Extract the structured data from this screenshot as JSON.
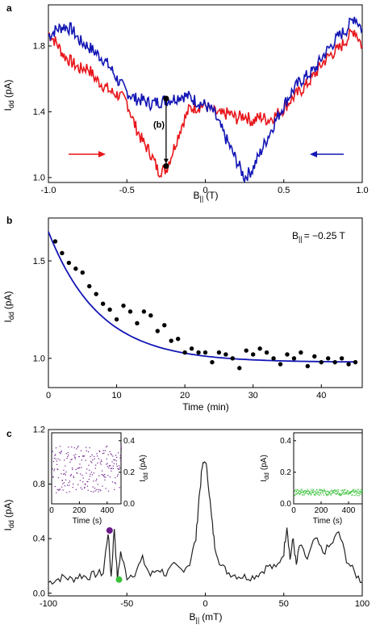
{
  "chart_data": [
    {
      "panel": "a",
      "type": "line",
      "xlabel_main": "B",
      "xlabel_sub": "||",
      "xlabel_unit": "(T)",
      "ylabel_main": "I",
      "ylabel_sub": "dd",
      "ylabel_unit": "(pA)",
      "xlim": [
        -1.0,
        1.0
      ],
      "ylim": [
        0.97,
        2.05
      ],
      "xticks": [
        -1.0,
        -0.5,
        0,
        0.5,
        1.0
      ],
      "xtick_labels": [
        "-1.0",
        "-0.5",
        "0",
        "0.5",
        "1.0"
      ],
      "yticks": [
        1.0,
        1.4,
        1.8
      ],
      "ytick_labels": [
        "1.0",
        "1.4",
        "1.8"
      ],
      "series": [
        {
          "color": "#e8161b",
          "sweep": "up",
          "x": [
            -1.0,
            -0.95,
            -0.9,
            -0.85,
            -0.8,
            -0.75,
            -0.7,
            -0.65,
            -0.6,
            -0.55,
            -0.5,
            -0.45,
            -0.4,
            -0.35,
            -0.3,
            -0.25,
            -0.2,
            -0.15,
            -0.1,
            -0.05,
            0.0,
            0.05,
            0.1,
            0.15,
            0.2,
            0.25,
            0.3,
            0.35,
            0.4,
            0.45,
            0.5,
            0.55,
            0.6,
            0.65,
            0.7,
            0.75,
            0.8,
            0.85,
            0.9,
            0.95,
            1.0
          ],
          "y": [
            1.88,
            1.82,
            1.74,
            1.7,
            1.66,
            1.67,
            1.6,
            1.56,
            1.52,
            1.5,
            1.46,
            1.32,
            1.22,
            1.15,
            1.04,
            1.05,
            1.18,
            1.32,
            1.42,
            1.43,
            1.44,
            1.4,
            1.38,
            1.39,
            1.36,
            1.38,
            1.34,
            1.37,
            1.35,
            1.38,
            1.42,
            1.48,
            1.52,
            1.57,
            1.63,
            1.7,
            1.75,
            1.78,
            1.84,
            1.9,
            1.8
          ]
        },
        {
          "color": "#1316b4",
          "sweep": "down",
          "x": [
            -1.0,
            -0.95,
            -0.9,
            -0.85,
            -0.8,
            -0.75,
            -0.7,
            -0.65,
            -0.6,
            -0.55,
            -0.5,
            -0.45,
            -0.4,
            -0.35,
            -0.3,
            -0.25,
            -0.2,
            -0.15,
            -0.1,
            -0.05,
            0.0,
            0.05,
            0.1,
            0.15,
            0.2,
            0.25,
            0.3,
            0.35,
            0.4,
            0.45,
            0.5,
            0.55,
            0.6,
            0.65,
            0.7,
            0.75,
            0.8,
            0.85,
            0.9,
            0.95,
            1.0
          ],
          "y": [
            1.86,
            1.9,
            1.92,
            1.9,
            1.83,
            1.8,
            1.76,
            1.72,
            1.66,
            1.58,
            1.52,
            1.48,
            1.47,
            1.45,
            1.46,
            1.47,
            1.48,
            1.5,
            1.49,
            1.46,
            1.44,
            1.4,
            1.3,
            1.2,
            1.1,
            1.0,
            1.05,
            1.15,
            1.25,
            1.35,
            1.44,
            1.52,
            1.58,
            1.62,
            1.66,
            1.74,
            1.8,
            1.86,
            1.9,
            1.98,
            1.9
          ]
        }
      ],
      "markers": [
        {
          "x": -0.25,
          "y": 1.48,
          "color": "#000000"
        },
        {
          "x": -0.25,
          "y": 1.07,
          "color": "#000000"
        }
      ],
      "annotation_label": "(b)"
    },
    {
      "panel": "b",
      "type": "scatter",
      "xlabel": "Time",
      "xlabel_unit": "(min)",
      "ylabel_main": "I",
      "ylabel_sub": "dd",
      "ylabel_unit": "(pA)",
      "xlim": [
        0,
        46
      ],
      "ylim": [
        0.85,
        1.72
      ],
      "xticks": [
        0,
        10,
        20,
        30,
        40
      ],
      "xtick_labels": [
        "0",
        "10",
        "20",
        "30",
        "40"
      ],
      "yticks": [
        1.0,
        1.5
      ],
      "ytick_labels": [
        "1.0",
        "1.5"
      ],
      "annotation_main": "B",
      "annotation_sub": "||",
      "annotation_value": "= −0.25 T",
      "points": {
        "x": [
          1,
          2,
          3,
          4,
          5,
          6,
          7,
          8,
          9,
          10,
          11,
          12,
          13,
          14,
          15,
          16,
          17,
          18,
          19,
          20,
          21,
          22,
          23,
          24,
          25,
          26,
          27,
          28,
          29,
          30,
          31,
          32,
          33,
          34,
          35,
          36,
          37,
          38,
          39,
          40,
          41,
          42,
          43,
          44,
          45
        ],
        "y": [
          1.6,
          1.54,
          1.49,
          1.46,
          1.44,
          1.37,
          1.33,
          1.28,
          1.25,
          1.2,
          1.27,
          1.24,
          1.18,
          1.24,
          1.22,
          1.14,
          1.17,
          1.09,
          1.1,
          1.03,
          1.05,
          1.03,
          1.03,
          0.98,
          1.03,
          1.02,
          1.0,
          0.95,
          1.04,
          1.02,
          1.05,
          1.03,
          1.0,
          0.97,
          1.02,
          1.0,
          1.03,
          0.96,
          1.01,
          0.98,
          1.0,
          0.98,
          1.0,
          0.97,
          0.98
        ],
        "color": "#000000"
      },
      "fit": {
        "type": "exponential",
        "A": 0.67,
        "tau_min": 7.5,
        "offset": 0.98,
        "color": "#1316b4"
      }
    },
    {
      "panel": "c",
      "type": "line",
      "xlabel_main": "B",
      "xlabel_sub": "||",
      "xlabel_unit": "(mT)",
      "ylabel_main": "I",
      "ylabel_sub": "dd",
      "ylabel_unit": "(pA)",
      "xlim": [
        -100,
        100
      ],
      "ylim": [
        -0.02,
        1.2
      ],
      "xticks": [
        -100,
        -50,
        0,
        50,
        100
      ],
      "xtick_labels": [
        "-100",
        "-50",
        "0",
        "50",
        "100"
      ],
      "yticks": [
        0.0,
        0.4,
        0.8,
        1.2
      ],
      "ytick_labels": [
        "0.0",
        "0.4",
        "0.8",
        "1.2"
      ],
      "series": [
        {
          "color": "#222222",
          "x": [
            -100,
            -95,
            -90,
            -85,
            -80,
            -75,
            -70,
            -65,
            -62,
            -60,
            -58,
            -56,
            -54,
            -50,
            -45,
            -40,
            -35,
            -30,
            -25,
            -20,
            -15,
            -10,
            -6,
            -4,
            -2,
            0,
            2,
            4,
            6,
            10,
            15,
            20,
            25,
            30,
            35,
            40,
            45,
            50,
            52,
            54,
            56,
            58,
            60,
            65,
            70,
            75,
            80,
            85,
            90,
            95,
            100
          ],
          "y": [
            0.08,
            0.1,
            0.12,
            0.1,
            0.13,
            0.12,
            0.14,
            0.15,
            0.45,
            0.12,
            0.48,
            0.1,
            0.3,
            0.12,
            0.15,
            0.25,
            0.13,
            0.18,
            0.14,
            0.2,
            0.17,
            0.22,
            0.4,
            0.7,
            0.92,
            0.98,
            0.8,
            0.55,
            0.35,
            0.2,
            0.15,
            0.13,
            0.12,
            0.12,
            0.15,
            0.2,
            0.18,
            0.3,
            0.5,
            0.25,
            0.4,
            0.2,
            0.35,
            0.25,
            0.4,
            0.3,
            0.35,
            0.45,
            0.25,
            0.15,
            0.08
          ]
        }
      ],
      "markers": [
        {
          "x": -61,
          "y": 0.46,
          "color": "#6a1a8a"
        },
        {
          "x": -55,
          "y": 0.1,
          "color": "#39c23a"
        }
      ],
      "insets": [
        {
          "position": "left",
          "color": "#6a1a8a",
          "xlabel": "Time",
          "xlabel_unit": "(s)",
          "ylabel_main": "I",
          "ylabel_sub": "dd",
          "ylabel_unit": "(pA)",
          "xlim": [
            0,
            500
          ],
          "ylim": [
            0,
            0.45
          ],
          "xticks": [
            0,
            200,
            400
          ],
          "xtick_labels": [
            "0",
            "200",
            "400"
          ],
          "yticks": [
            0.0,
            0.2,
            0.4
          ],
          "ytick_labels": [
            "0.0",
            "0.2",
            "0.4"
          ],
          "level_mean": 0.22,
          "level_spread": 0.15
        },
        {
          "position": "right",
          "color": "#39c23a",
          "xlabel": "Time",
          "xlabel_unit": "(s)",
          "ylabel_main": "I",
          "ylabel_sub": "dd",
          "ylabel_unit": "(pA)",
          "xlim": [
            0,
            500
          ],
          "ylim": [
            0,
            0.45
          ],
          "xticks": [
            0,
            200,
            400
          ],
          "xtick_labels": [
            "0",
            "200",
            "400"
          ],
          "yticks": [
            0.0,
            0.2,
            0.4
          ],
          "ytick_labels": [
            "0.0",
            "0.2",
            "0.4"
          ],
          "level_mean": 0.075,
          "level_spread": 0.02
        }
      ]
    }
  ]
}
